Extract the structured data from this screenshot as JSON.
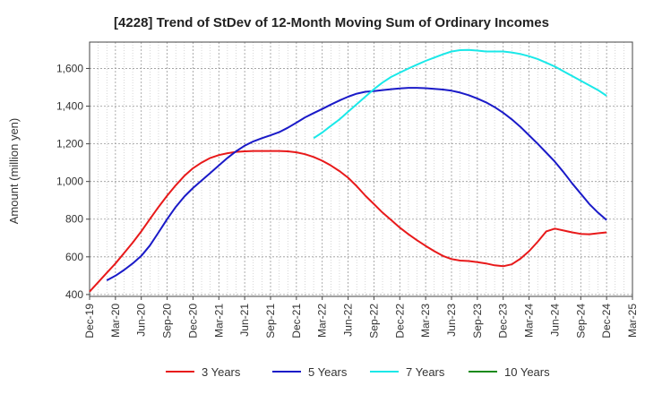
{
  "colors": {
    "3 Years": "#e8191a",
    "5 Years": "#1a1ac8",
    "7 Years": "#1ae8e8",
    "10 Years": "#1a8a1a"
  },
  "chart_data": {
    "type": "line",
    "title": "[4228]  Trend of StDev of 12-Month Moving Sum of Ordinary Incomes",
    "xlabel": "",
    "ylabel": "Amount (million yen)",
    "x_tick_labels": [
      "Dec-19",
      "Mar-20",
      "Jun-20",
      "Sep-20",
      "Dec-20",
      "Mar-21",
      "Jun-21",
      "Sep-21",
      "Dec-21",
      "Mar-22",
      "Jun-22",
      "Sep-22",
      "Dec-22",
      "Mar-23",
      "Jun-23",
      "Sep-23",
      "Dec-23",
      "Mar-24",
      "Jun-24",
      "Sep-24",
      "Dec-24",
      "Mar-25"
    ],
    "y_tick_labels": [
      "400",
      "600",
      "800",
      "1,000",
      "1,200",
      "1,400",
      "1,600"
    ],
    "ylim": [
      390,
      1740
    ],
    "grid": true,
    "legend_position": "bottom",
    "legend": [
      "3 Years",
      "5 Years",
      "7 Years",
      "10 Years"
    ],
    "series": [
      {
        "name": "3 Years",
        "x": [
          "Dec-19",
          "Jan-20",
          "Feb-20",
          "Mar-20",
          "Apr-20",
          "May-20",
          "Jun-20",
          "Jul-20",
          "Aug-20",
          "Sep-20",
          "Oct-20",
          "Nov-20",
          "Dec-20",
          "Jan-21",
          "Feb-21",
          "Mar-21",
          "Apr-21",
          "May-21",
          "Jun-21",
          "Jul-21",
          "Aug-21",
          "Sep-21",
          "Oct-21",
          "Nov-21",
          "Dec-21",
          "Jan-22",
          "Feb-22",
          "Mar-22",
          "Apr-22",
          "May-22",
          "Jun-22",
          "Jul-22",
          "Aug-22",
          "Sep-22",
          "Oct-22",
          "Nov-22",
          "Dec-22",
          "Jan-23",
          "Feb-23",
          "Mar-23",
          "Apr-23",
          "May-23",
          "Jun-23",
          "Jul-23",
          "Aug-23",
          "Sep-23",
          "Oct-23",
          "Nov-23",
          "Dec-23",
          "Jan-24",
          "Feb-24",
          "Mar-24",
          "Apr-24",
          "May-24",
          "Jun-24",
          "Jul-24",
          "Aug-24",
          "Sep-24",
          "Oct-24",
          "Nov-24",
          "Dec-24"
        ],
        "values": [
          415,
          465,
          515,
          565,
          620,
          675,
          735,
          800,
          865,
          925,
          980,
          1030,
          1070,
          1100,
          1125,
          1140,
          1150,
          1157,
          1160,
          1162,
          1162,
          1162,
          1162,
          1160,
          1155,
          1145,
          1130,
          1110,
          1085,
          1055,
          1020,
          975,
          925,
          880,
          835,
          795,
          755,
          720,
          688,
          658,
          630,
          605,
          588,
          580,
          578,
          572,
          565,
          555,
          550,
          560,
          590,
          630,
          680,
          735,
          750,
          740,
          730,
          722,
          720,
          725,
          730
        ]
      },
      {
        "name": "5 Years",
        "x": [
          "Feb-20",
          "Mar-20",
          "Apr-20",
          "May-20",
          "Jun-20",
          "Jul-20",
          "Aug-20",
          "Sep-20",
          "Oct-20",
          "Nov-20",
          "Dec-20",
          "Jan-21",
          "Feb-21",
          "Mar-21",
          "Apr-21",
          "May-21",
          "Jun-21",
          "Jul-21",
          "Aug-21",
          "Sep-21",
          "Oct-21",
          "Nov-21",
          "Dec-21",
          "Jan-22",
          "Feb-22",
          "Mar-22",
          "Apr-22",
          "May-22",
          "Jun-22",
          "Jul-22",
          "Aug-22",
          "Sep-22",
          "Oct-22",
          "Nov-22",
          "Dec-22",
          "Jan-23",
          "Feb-23",
          "Mar-23",
          "Apr-23",
          "May-23",
          "Jun-23",
          "Jul-23",
          "Aug-23",
          "Sep-23",
          "Oct-23",
          "Nov-23",
          "Dec-23",
          "Jan-24",
          "Feb-24",
          "Mar-24",
          "Apr-24",
          "May-24",
          "Jun-24",
          "Jul-24",
          "Aug-24",
          "Sep-24",
          "Oct-24",
          "Nov-24",
          "Dec-24"
        ],
        "values": [
          475,
          500,
          530,
          565,
          605,
          660,
          730,
          800,
          865,
          920,
          965,
          1005,
          1045,
          1085,
          1125,
          1160,
          1190,
          1213,
          1230,
          1245,
          1262,
          1285,
          1312,
          1340,
          1363,
          1385,
          1408,
          1430,
          1450,
          1466,
          1476,
          1480,
          1485,
          1490,
          1494,
          1497,
          1497,
          1495,
          1492,
          1488,
          1482,
          1472,
          1458,
          1440,
          1420,
          1395,
          1365,
          1330,
          1290,
          1245,
          1200,
          1153,
          1105,
          1050,
          990,
          935,
          880,
          835,
          795
        ]
      },
      {
        "name": "7 Years",
        "x": [
          "Feb-22",
          "Mar-22",
          "Apr-22",
          "May-22",
          "Jun-22",
          "Jul-22",
          "Aug-22",
          "Sep-22",
          "Oct-22",
          "Nov-22",
          "Dec-22",
          "Jan-23",
          "Feb-23",
          "Mar-23",
          "Apr-23",
          "May-23",
          "Jun-23",
          "Jul-23",
          "Aug-23",
          "Sep-23",
          "Oct-23",
          "Nov-23",
          "Dec-23",
          "Jan-24",
          "Feb-24",
          "Mar-24",
          "Apr-24",
          "May-24",
          "Jun-24",
          "Jul-24",
          "Aug-24",
          "Sep-24",
          "Oct-24",
          "Nov-24",
          "Dec-24"
        ],
        "values": [
          1230,
          1260,
          1295,
          1330,
          1370,
          1410,
          1450,
          1490,
          1525,
          1555,
          1578,
          1600,
          1620,
          1640,
          1658,
          1675,
          1690,
          1697,
          1698,
          1695,
          1690,
          1690,
          1690,
          1685,
          1677,
          1665,
          1650,
          1630,
          1610,
          1585,
          1560,
          1535,
          1510,
          1485,
          1455
        ]
      },
      {
        "name": "10 Years",
        "x": [],
        "values": []
      }
    ]
  }
}
